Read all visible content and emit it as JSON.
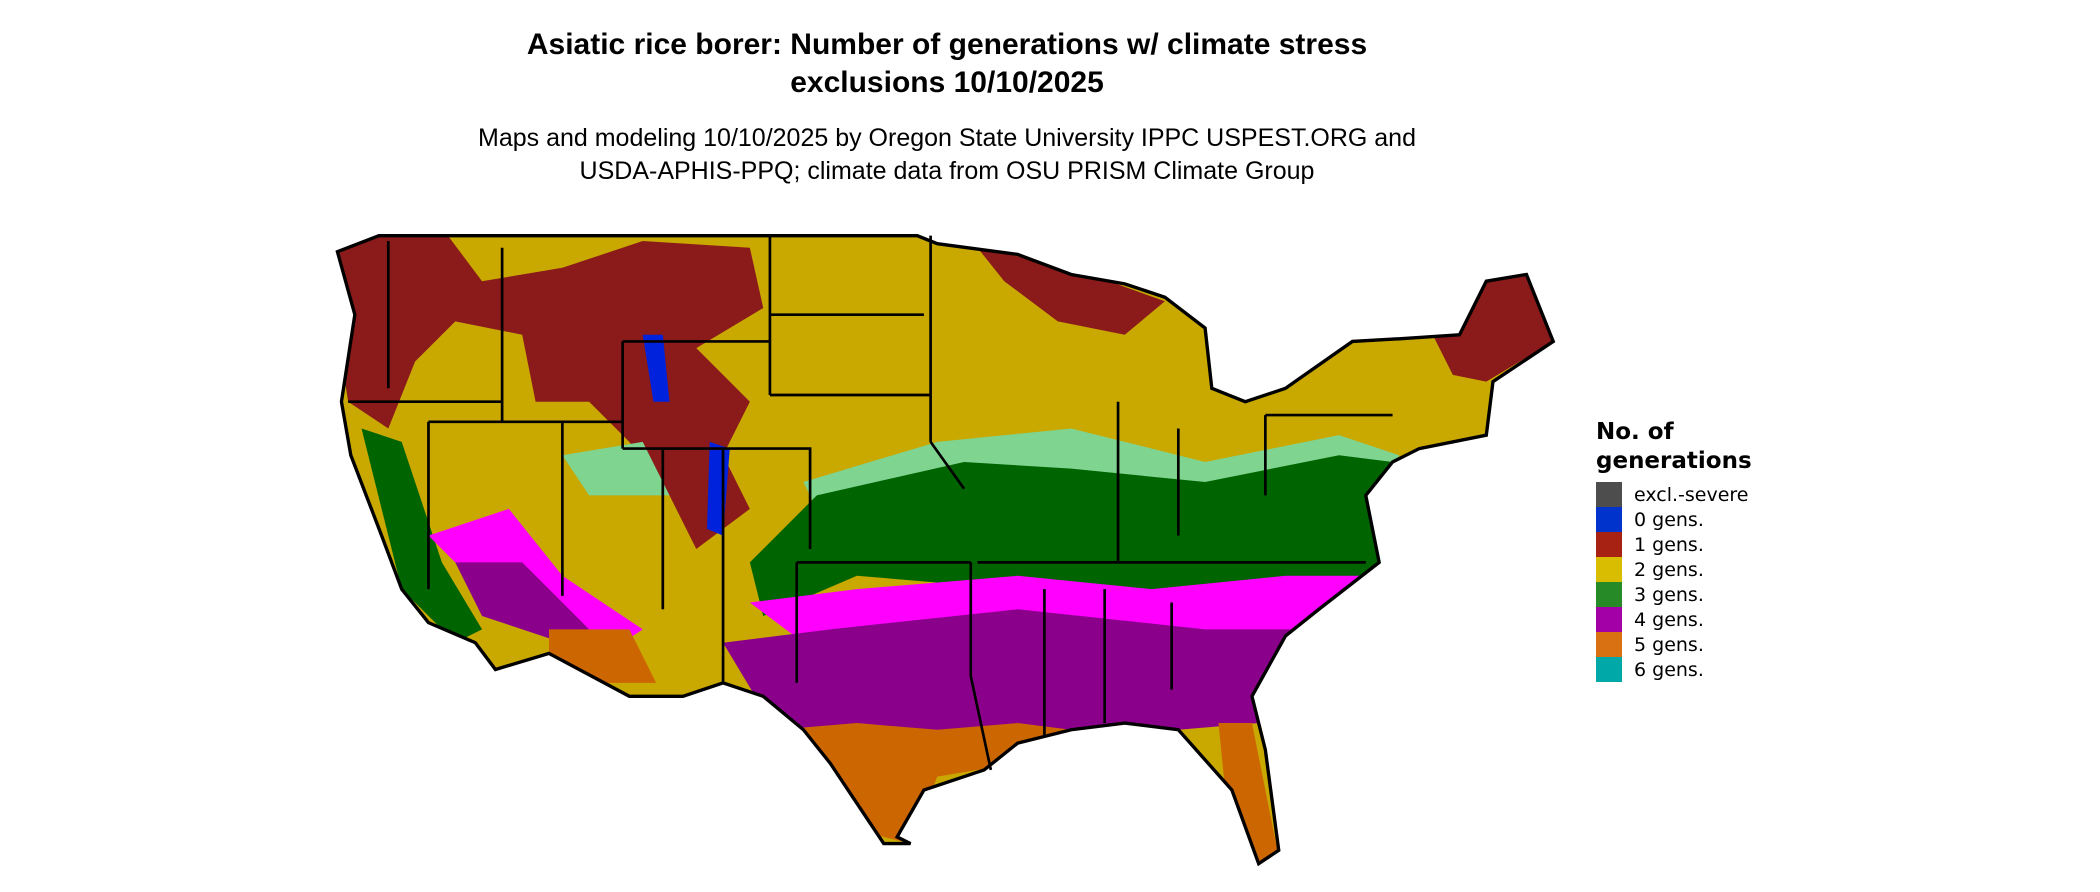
{
  "header": {
    "title_line1": "Asiatic rice borer: Number of generations w/ climate stress",
    "title_line2": "exclusions 10/10/2025",
    "subtitle_line1": "Maps and modeling 10/10/2025 by Oregon State University IPPC USPEST.ORG and",
    "subtitle_line2": "USDA-APHIS-PPQ; climate data from OSU PRISM Climate Group"
  },
  "legend": {
    "title_line1": "No. of",
    "title_line2": "generations",
    "items": [
      {
        "label": "excl.-severe",
        "color": "#4d4d4d"
      },
      {
        "label": "0 gens.",
        "color": "#0033cc"
      },
      {
        "label": "1 gens.",
        "color": "#a82214"
      },
      {
        "label": "2 gens.",
        "color": "#d9bd00"
      },
      {
        "label": "3 gens.",
        "color": "#268a26"
      },
      {
        "label": "4 gens.",
        "color": "#a300a8"
      },
      {
        "label": "5 gens.",
        "color": "#d97012"
      },
      {
        "label": "6 gens.",
        "color": "#00a8a8"
      }
    ]
  },
  "map_colors": {
    "one_gen": "#8b1a1a",
    "two_gen": "#c9a800",
    "three_gen": "#006400",
    "three_gen_light": "#7fd48f",
    "four_gen": "#8b008b",
    "four_gen_light": "#ff00ff",
    "five_gen": "#cc6600",
    "six_gen": "#00a8a8",
    "zero_gen": "#0022dd",
    "border": "#000000"
  }
}
